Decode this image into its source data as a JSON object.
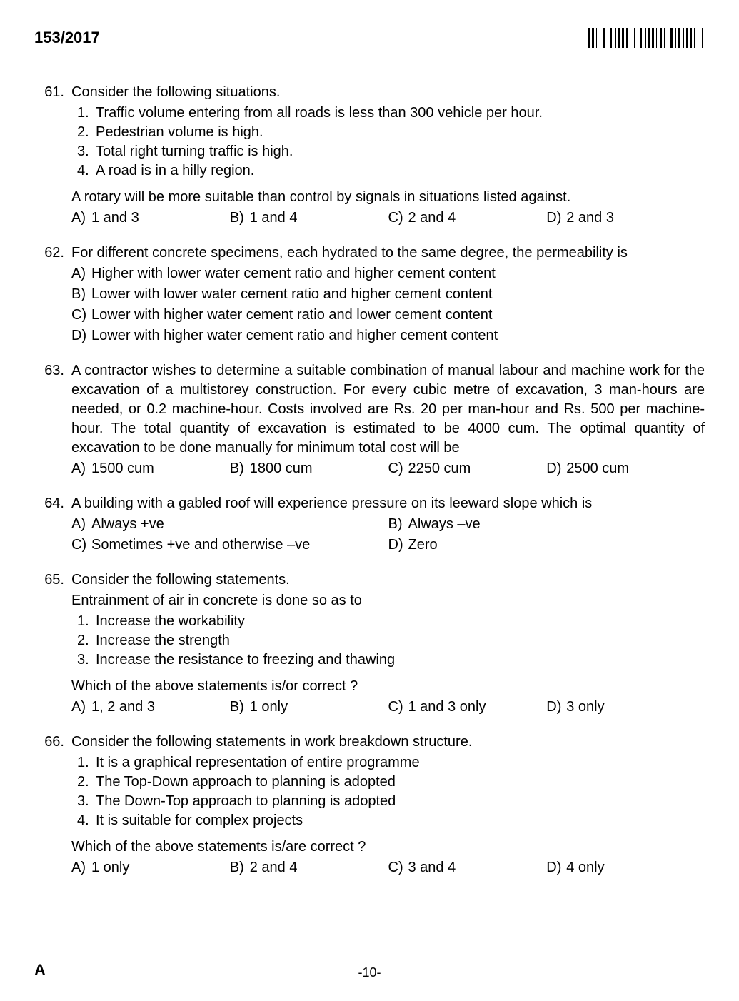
{
  "header": {
    "paper_code": "153/2017"
  },
  "footer": {
    "series": "A",
    "page": "-10-"
  },
  "questions": [
    {
      "num": "61.",
      "stem": "Consider the following situations.",
      "subitems": [
        {
          "n": "1.",
          "t": "Traffic volume entering from all roads is less than 300 vehicle per hour."
        },
        {
          "n": "2.",
          "t": "Pedestrian volume is high."
        },
        {
          "n": "3.",
          "t": "Total right turning traffic is high."
        },
        {
          "n": "4.",
          "t": "A road is in a hilly region."
        }
      ],
      "follow": "A rotary will be more suitable than control by signals in situations listed against.",
      "options": [
        {
          "l": "A)",
          "t": "1 and 3"
        },
        {
          "l": "B)",
          "t": "1 and 4"
        },
        {
          "l": "C)",
          "t": "2 and 4"
        },
        {
          "l": "D)",
          "t": "2 and 3"
        }
      ],
      "layout": "4col"
    },
    {
      "num": "62.",
      "stem": "For different concrete specimens, each hydrated to the same degree, the permeability is",
      "options": [
        {
          "l": "A)",
          "t": "Higher with lower water cement ratio and higher cement content"
        },
        {
          "l": "B)",
          "t": "Lower with lower water cement ratio and higher cement content"
        },
        {
          "l": "C)",
          "t": "Lower with higher water cement ratio and lower cement content"
        },
        {
          "l": "D)",
          "t": "Lower with higher water cement ratio and higher cement content"
        }
      ],
      "layout": "1col"
    },
    {
      "num": "63.",
      "stem": "A contractor wishes to determine a suitable combination of manual labour and machine work for the excavation of a multistorey construction. For every cubic metre of excavation, 3 man-hours are needed, or 0.2 machine-hour. Costs involved are Rs. 20 per man-hour and Rs. 500 per machine-hour. The total quantity of excavation is estimated to be 4000 cum. The optimal quantity of excavation to be done manually for minimum total cost will be",
      "justify": true,
      "options": [
        {
          "l": "A)",
          "t": "1500 cum"
        },
        {
          "l": "B)",
          "t": "1800 cum"
        },
        {
          "l": "C)",
          "t": "2250 cum"
        },
        {
          "l": "D)",
          "t": "2500 cum"
        }
      ],
      "layout": "4col"
    },
    {
      "num": "64.",
      "stem": "A building with a gabled roof will experience pressure on its leeward slope which is",
      "options": [
        {
          "l": "A)",
          "t": "Always +ve"
        },
        {
          "l": "B)",
          "t": "Always –ve"
        },
        {
          "l": "C)",
          "t": "Sometimes +ve and otherwise –ve"
        },
        {
          "l": "D)",
          "t": "Zero"
        }
      ],
      "layout": "2col"
    },
    {
      "num": "65.",
      "stem": "Consider the following statements.",
      "stem2": "Entrainment of air in concrete is done so as to",
      "subitems": [
        {
          "n": "1.",
          "t": "Increase the workability"
        },
        {
          "n": "2.",
          "t": "Increase the strength"
        },
        {
          "n": "3.",
          "t": "Increase the resistance to freezing and thawing"
        }
      ],
      "follow": "Which of the above statements is/or correct ?",
      "options": [
        {
          "l": "A)",
          "t": "1, 2 and 3"
        },
        {
          "l": "B)",
          "t": "1 only"
        },
        {
          "l": "C)",
          "t": "1 and 3 only"
        },
        {
          "l": "D)",
          "t": "3 only"
        }
      ],
      "layout": "4col"
    },
    {
      "num": "66.",
      "stem": "Consider the following statements in work breakdown structure.",
      "subitems": [
        {
          "n": "1.",
          "t": "It is a graphical representation of entire programme"
        },
        {
          "n": "2.",
          "t": "The Top-Down approach to planning is adopted"
        },
        {
          "n": "3.",
          "t": "The Down-Top approach to planning is adopted"
        },
        {
          "n": "4.",
          "t": "It is suitable for complex projects"
        }
      ],
      "follow": "Which of the above statements is/are correct ?",
      "options": [
        {
          "l": "A)",
          "t": "1 only"
        },
        {
          "l": "B)",
          "t": "2 and 4"
        },
        {
          "l": "C)",
          "t": "3 and 4"
        },
        {
          "l": "D)",
          "t": "4 only"
        }
      ],
      "layout": "4col"
    }
  ],
  "barcode_widths": [
    2,
    1,
    3,
    1,
    1,
    2,
    1,
    1,
    3,
    2,
    1,
    1,
    2,
    3,
    1,
    1,
    2,
    1,
    3,
    1,
    2,
    1,
    1,
    3,
    1,
    2,
    1,
    1,
    2,
    3,
    1,
    1,
    2,
    1,
    3,
    1,
    1,
    2,
    3,
    1,
    1,
    2,
    1,
    1,
    3,
    2,
    1,
    1,
    2,
    3,
    1,
    1,
    2,
    1,
    3,
    1,
    2,
    1,
    1,
    3,
    1,
    2
  ]
}
